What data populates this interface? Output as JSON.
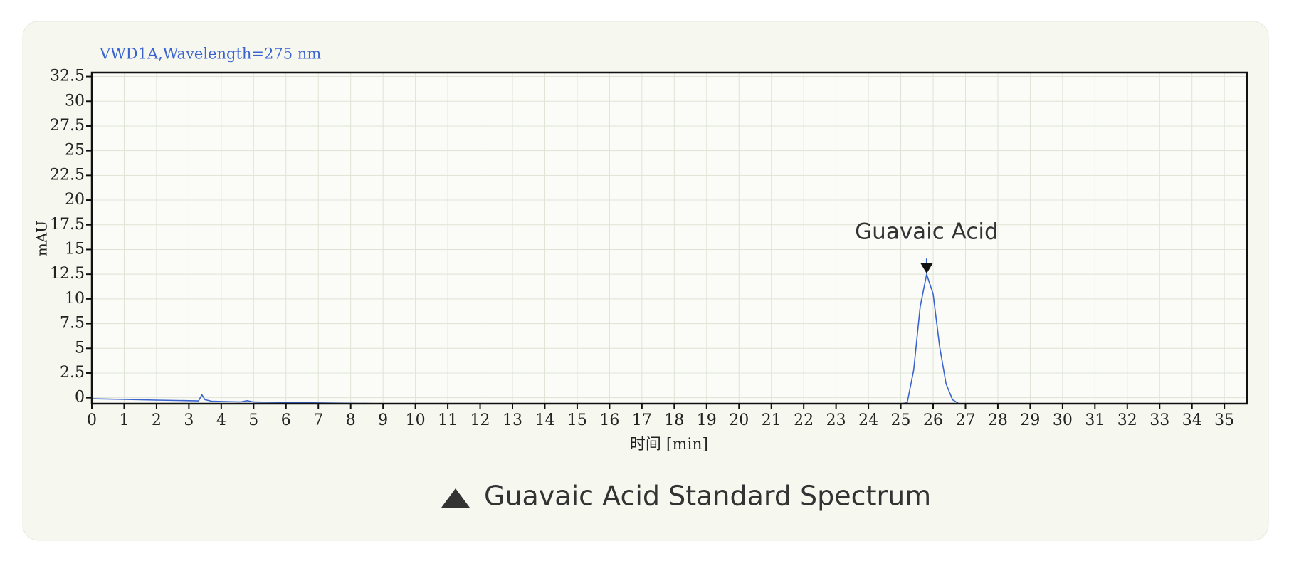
{
  "chart_data": {
    "type": "line",
    "title": "VWD1A,Wavelength=275 nm",
    "xlabel": "时间 [min]",
    "ylabel": "mAU",
    "caption": "Guavaic Acid Standard Spectrum",
    "annotation": "Guavaic Acid",
    "x": [
      0,
      1,
      2,
      3,
      3.3,
      3.4,
      3.5,
      3.7,
      4,
      4.6,
      4.8,
      5,
      6,
      7,
      8,
      9,
      10,
      15,
      20,
      25,
      25.2,
      25.4,
      25.6,
      25.8,
      26,
      26.2,
      26.4,
      26.6,
      26.8,
      30,
      35,
      35.7
    ],
    "series": [
      {
        "name": "VWD1A",
        "color": "#3a63d0",
        "values": [
          -0.1,
          -0.17,
          -0.24,
          -0.3,
          -0.32,
          0.3,
          -0.2,
          -0.35,
          -0.38,
          -0.42,
          -0.3,
          -0.43,
          -0.48,
          -0.52,
          -0.56,
          -0.6,
          -0.6,
          -0.6,
          -0.6,
          -0.6,
          -0.5,
          2.8,
          9.2,
          12.5,
          10.5,
          5.2,
          1.4,
          -0.2,
          -0.6,
          -0.6,
          -0.6,
          -0.6
        ]
      }
    ],
    "xlim": [
      0,
      35.7
    ],
    "ylim": [
      -0.6,
      32.9
    ],
    "xticks": [
      0,
      1,
      2,
      3,
      4,
      5,
      6,
      7,
      8,
      9,
      10,
      11,
      12,
      13,
      14,
      15,
      16,
      17,
      18,
      19,
      20,
      21,
      22,
      23,
      24,
      25,
      26,
      27,
      28,
      29,
      30,
      31,
      32,
      33,
      34,
      35
    ],
    "yticks": [
      0,
      2.5,
      5,
      7.5,
      10,
      12.5,
      15,
      17.5,
      20,
      22.5,
      25,
      27.5,
      30,
      32.5
    ],
    "grid": true
  }
}
